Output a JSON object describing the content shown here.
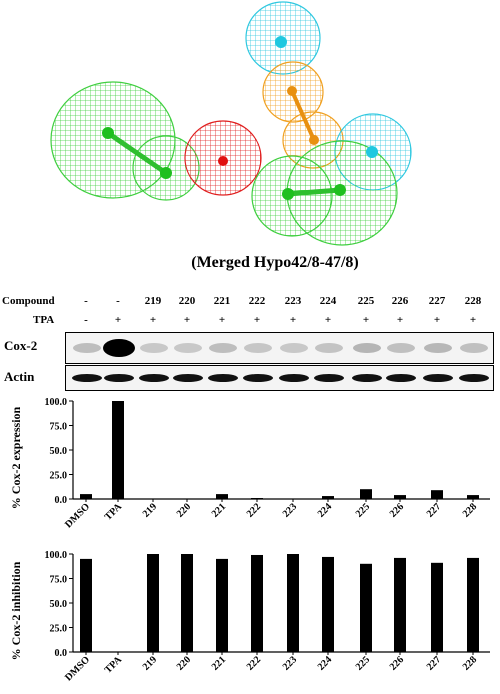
{
  "caption": "(Merged Hypo42/8-47/8)",
  "blot": {
    "compound_label": "Compound",
    "tpa_label": "TPA",
    "compound_values": [
      "-",
      "-",
      "219",
      "220",
      "221",
      "222",
      "223",
      "224",
      "225",
      "226",
      "227",
      "228"
    ],
    "tpa_values": [
      "-",
      "+",
      "+",
      "+",
      "+",
      "+",
      "+",
      "+",
      "+",
      "+",
      "+",
      "+"
    ],
    "cox2_label": "Cox-2",
    "actin_label": "Actin"
  },
  "chart_data": [
    {
      "type": "bar",
      "categories": [
        "DMSO",
        "TPA",
        "219",
        "220",
        "221",
        "222",
        "223",
        "224",
        "225",
        "226",
        "227",
        "228"
      ],
      "values": [
        5,
        100,
        0,
        0,
        5,
        1,
        0,
        3,
        10,
        4,
        9,
        4
      ],
      "ylabel": "% Cox-2 expression",
      "ylim": [
        0,
        100
      ],
      "yticks": [
        "0.0",
        "25.0",
        "50.0",
        "75.0",
        "100.0"
      ]
    },
    {
      "type": "bar",
      "categories": [
        "DMSO",
        "TPA",
        "219",
        "220",
        "221",
        "222",
        "223",
        "224",
        "225",
        "226",
        "227",
        "228"
      ],
      "values": [
        95,
        0,
        100,
        100,
        95,
        99,
        100,
        97,
        90,
        96,
        91,
        96
      ],
      "ylabel": "% Cox-2 inhibition",
      "ylim": [
        0,
        100
      ],
      "yticks": [
        "0.0",
        "25.0",
        "50.0",
        "75.0",
        "100.0"
      ]
    }
  ]
}
